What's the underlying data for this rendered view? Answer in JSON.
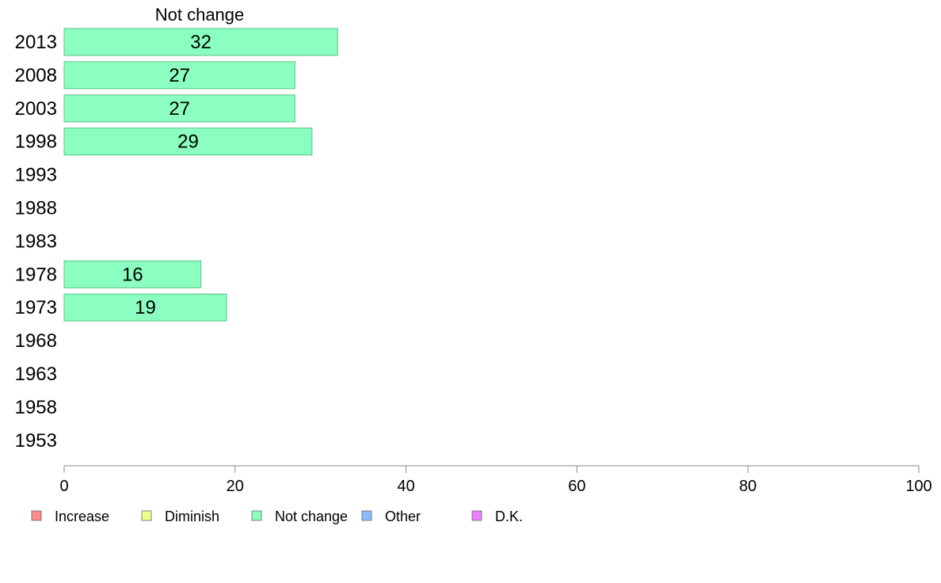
{
  "chart_data": {
    "type": "bar",
    "orientation": "horizontal",
    "title": "Not change",
    "categories": [
      "2013",
      "2008",
      "2003",
      "1998",
      "1993",
      "1988",
      "1983",
      "1978",
      "1973",
      "1968",
      "1963",
      "1958",
      "1953"
    ],
    "series": [
      {
        "name": "Not change",
        "color": "#8affbf",
        "values": [
          32,
          27,
          27,
          29,
          null,
          null,
          null,
          16,
          19,
          null,
          null,
          null,
          null
        ]
      }
    ],
    "xlim": [
      0,
      100
    ],
    "xticks": [
      0,
      20,
      40,
      60,
      80,
      100
    ],
    "grid": false,
    "legend": {
      "position": "bottom",
      "items": [
        {
          "label": "Increase",
          "color": "#ff8c8c"
        },
        {
          "label": "Diminish",
          "color": "#eeff8a"
        },
        {
          "label": "Not change",
          "color": "#8affbf"
        },
        {
          "label": "Other",
          "color": "#8cbcff"
        },
        {
          "label": "D.K.",
          "color": "#ee80ff"
        }
      ]
    }
  }
}
